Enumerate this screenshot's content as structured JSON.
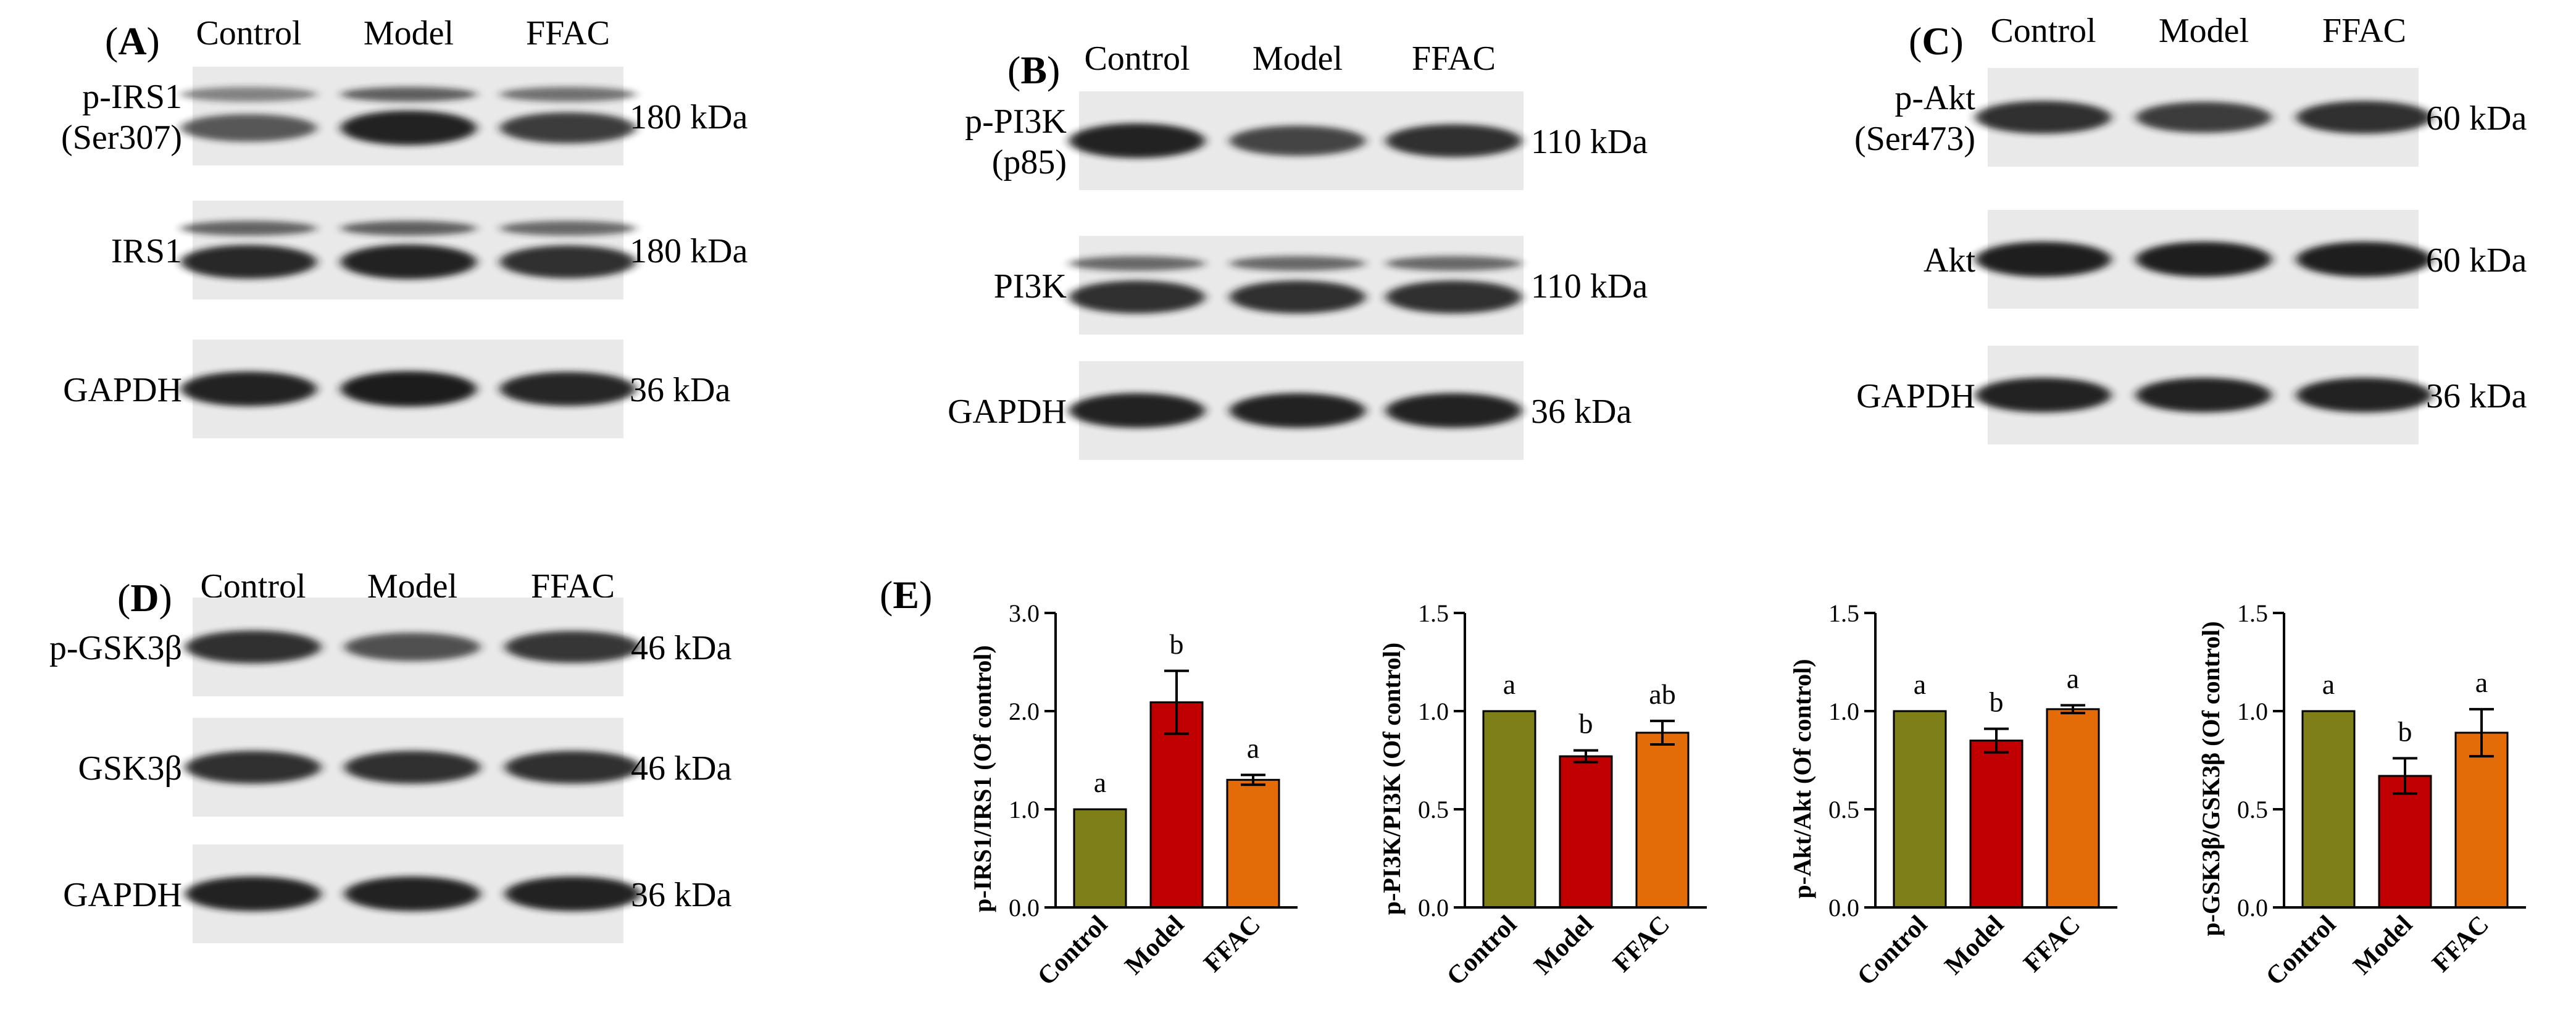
{
  "colors": {
    "control": "#7f7f1a",
    "model": "#c00000",
    "ffac": "#e36c09",
    "blot_bg": "#e9e9e9",
    "band": "#1a1a1a"
  },
  "panels": [
    {
      "letter": "A",
      "groups": [
        "Control",
        "Model",
        "FFAC"
      ],
      "rows": [
        {
          "label_lines": [
            "p-IRS1",
            "(Ser307)"
          ],
          "size": "180 kDa",
          "intensity": [
            0.55,
            0.95,
            0.75
          ],
          "double": true
        },
        {
          "label_lines": [
            "IRS1"
          ],
          "size": "180 kDa",
          "intensity": [
            0.9,
            0.95,
            0.85
          ],
          "double": true
        },
        {
          "label_lines": [
            "GAPDH"
          ],
          "size": "36 kDa",
          "intensity": [
            0.95,
            1.0,
            0.92
          ],
          "double": false
        }
      ]
    },
    {
      "letter": "B",
      "groups": [
        "Control",
        "Model",
        "FFAC"
      ],
      "rows": [
        {
          "label_lines": [
            "p-PI3K",
            "(p85)"
          ],
          "size": "110 kDa",
          "intensity": [
            0.95,
            0.7,
            0.85
          ],
          "double": false
        },
        {
          "label_lines": [
            "PI3K"
          ],
          "size": "110 kDa",
          "intensity": [
            0.85,
            0.85,
            0.85
          ],
          "double": true
        },
        {
          "label_lines": [
            "GAPDH"
          ],
          "size": "36 kDa",
          "intensity": [
            0.95,
            0.95,
            0.95
          ],
          "double": false
        }
      ]
    },
    {
      "letter": "C",
      "groups": [
        "Control",
        "Model",
        "FFAC"
      ],
      "rows": [
        {
          "label_lines": [
            "p-Akt",
            "(Ser473)"
          ],
          "size": "60 kDa",
          "intensity": [
            0.85,
            0.75,
            0.85
          ],
          "double": false
        },
        {
          "label_lines": [
            "Akt"
          ],
          "size": "60 kDa",
          "intensity": [
            0.98,
            0.98,
            0.98
          ],
          "double": false
        },
        {
          "label_lines": [
            "GAPDH"
          ],
          "size": "36 kDa",
          "intensity": [
            0.95,
            0.95,
            0.95
          ],
          "double": false
        }
      ]
    },
    {
      "letter": "D",
      "groups": [
        "Control",
        "Model",
        "FFAC"
      ],
      "rows": [
        {
          "label_lines": [
            "p-GSK3β"
          ],
          "size": "46 kDa",
          "intensity": [
            0.85,
            0.6,
            0.8
          ],
          "double": false
        },
        {
          "label_lines": [
            "GSK3β"
          ],
          "size": "46 kDa",
          "intensity": [
            0.85,
            0.85,
            0.85
          ],
          "double": false
        },
        {
          "label_lines": [
            "GAPDH"
          ],
          "size": "36 kDa",
          "intensity": [
            0.95,
            0.95,
            0.95
          ],
          "double": false
        }
      ]
    }
  ],
  "panel_e_letter": "E",
  "chart_data": [
    {
      "type": "bar",
      "categories": [
        "Control",
        "Model",
        "FFAC"
      ],
      "values": [
        1.0,
        2.09,
        1.3
      ],
      "errors": [
        0.0,
        0.32,
        0.05
      ],
      "significance": [
        "a",
        "b",
        "a"
      ],
      "ylabel": "p-IRS1/IRS1 (Of control)",
      "ylim": [
        0,
        3.0
      ],
      "yticks": [
        "0.0",
        "1.0",
        "2.0",
        "3.0"
      ],
      "title": "",
      "xlabel": ""
    },
    {
      "type": "bar",
      "categories": [
        "Control",
        "Model",
        "FFAC"
      ],
      "values": [
        1.0,
        0.77,
        0.89
      ],
      "errors": [
        0.0,
        0.03,
        0.06
      ],
      "significance": [
        "a",
        "b",
        "ab"
      ],
      "ylabel": "p-PI3K/PI3K (Of control)",
      "ylim": [
        0,
        1.5
      ],
      "yticks": [
        "0.0",
        "0.5",
        "1.0",
        "1.5"
      ],
      "title": "",
      "xlabel": ""
    },
    {
      "type": "bar",
      "categories": [
        "Control",
        "Model",
        "FFAC"
      ],
      "values": [
        1.0,
        0.85,
        1.01
      ],
      "errors": [
        0.0,
        0.06,
        0.02
      ],
      "significance": [
        "a",
        "b",
        "a"
      ],
      "ylabel": "p-Akt/Akt (Of control)",
      "ylim": [
        0,
        1.5
      ],
      "yticks": [
        "0.0",
        "0.5",
        "1.0",
        "1.5"
      ],
      "title": "",
      "xlabel": ""
    },
    {
      "type": "bar",
      "categories": [
        "Control",
        "Model",
        "FFAC"
      ],
      "values": [
        1.0,
        0.67,
        0.89
      ],
      "errors": [
        0.0,
        0.09,
        0.12
      ],
      "significance": [
        "a",
        "b",
        "a"
      ],
      "ylabel": "p-GSK3β/GSK3β (Of control)",
      "ylim": [
        0,
        1.5
      ],
      "yticks": [
        "0.0",
        "0.5",
        "1.0",
        "1.5"
      ],
      "title": "",
      "xlabel": ""
    }
  ]
}
